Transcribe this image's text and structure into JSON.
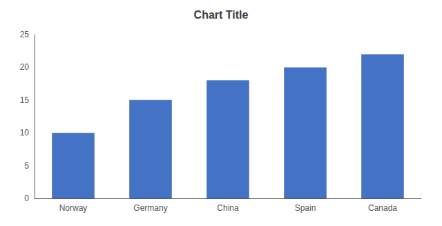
{
  "chart_data": {
    "type": "bar",
    "title": "Chart Title",
    "categories": [
      "Norway",
      "Germany",
      "China",
      "Spain",
      "Canada"
    ],
    "values": [
      10,
      15,
      18,
      20,
      22
    ],
    "color": "#4472C4",
    "ylim": [
      0,
      25
    ],
    "yticks": [
      0,
      5,
      10,
      15,
      20,
      25
    ],
    "grid": false
  }
}
